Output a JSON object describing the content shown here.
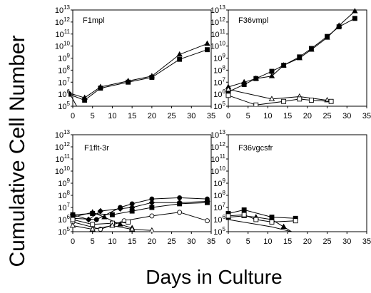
{
  "figure": {
    "ylabel": "Cumulative Cell Number",
    "xlabel": "Days in Culture"
  },
  "chart_data": [
    {
      "type": "line",
      "title": "F1mpl",
      "xlim": [
        0,
        35
      ],
      "ylim_log10": [
        5,
        13
      ],
      "xticks": [
        0,
        5,
        10,
        15,
        20,
        25,
        30,
        35
      ],
      "yticks_log10": [
        5,
        6,
        7,
        8,
        9,
        10,
        11,
        12,
        13
      ],
      "series": [
        {
          "marker": "triangle-filled",
          "points": [
            [
              -1,
              6.1
            ],
            [
              3,
              5.7
            ],
            [
              7,
              6.6
            ],
            [
              14,
              7.1
            ],
            [
              20,
              7.5
            ],
            [
              27,
              9.3
            ],
            [
              34,
              10.2
            ]
          ]
        },
        {
          "marker": "square-filled",
          "points": [
            [
              -1,
              6.0
            ],
            [
              3,
              5.5
            ],
            [
              7,
              6.5
            ],
            [
              14,
              7.0
            ],
            [
              20,
              7.4
            ],
            [
              27,
              8.9
            ],
            [
              34,
              9.7
            ]
          ]
        },
        {
          "marker": "none",
          "points": [
            [
              -1,
              6.2
            ],
            [
              1,
              5.0
            ]
          ]
        }
      ]
    },
    {
      "type": "line",
      "title": "F36vmpl",
      "xlim": [
        0,
        35
      ],
      "ylim_log10": [
        5,
        13
      ],
      "xticks": [
        0,
        5,
        10,
        15,
        20,
        25,
        30,
        35
      ],
      "yticks_log10": [
        5,
        6,
        7,
        8,
        9,
        10,
        11,
        12,
        13
      ],
      "series": [
        {
          "marker": "triangle-filled",
          "points": [
            [
              0,
              6.6
            ],
            [
              4,
              7.0
            ],
            [
              7,
              7.3
            ],
            [
              11,
              7.5
            ],
            [
              14,
              8.4
            ],
            [
              18,
              9.0
            ],
            [
              21,
              9.7
            ],
            [
              25,
              10.7
            ],
            [
              28,
              11.7
            ],
            [
              32,
              12.9
            ]
          ]
        },
        {
          "marker": "square-filled",
          "points": [
            [
              0,
              6.2
            ],
            [
              4,
              6.8
            ],
            [
              7,
              7.3
            ],
            [
              11,
              7.9
            ],
            [
              14,
              8.4
            ],
            [
              18,
              9.1
            ],
            [
              21,
              9.8
            ],
            [
              25,
              10.8
            ],
            [
              28,
              11.6
            ],
            [
              32,
              12.3
            ]
          ]
        },
        {
          "marker": "triangle-open",
          "points": [
            [
              0,
              6.4
            ],
            [
              11,
              5.6
            ],
            [
              18,
              5.8
            ],
            [
              25,
              5.5
            ]
          ]
        },
        {
          "marker": "square-open",
          "points": [
            [
              0,
              5.9
            ],
            [
              7,
              5.1
            ],
            [
              14,
              5.4
            ],
            [
              18,
              5.6
            ],
            [
              21,
              5.5
            ],
            [
              26,
              5.4
            ]
          ]
        }
      ]
    },
    {
      "type": "line",
      "title": "F1flt-3r",
      "xlim": [
        0,
        35
      ],
      "ylim_log10": [
        5,
        13
      ],
      "xticks": [
        0,
        5,
        10,
        15,
        20,
        25,
        30,
        35
      ],
      "yticks_log10": [
        5,
        6,
        7,
        8,
        9,
        10,
        11,
        12,
        13
      ],
      "series": [
        {
          "marker": "circle-filled",
          "points": [
            [
              0,
              6.1
            ],
            [
              6,
              6.0
            ],
            [
              12,
              7.0
            ],
            [
              15,
              7.3
            ],
            [
              20,
              7.7
            ],
            [
              27,
              7.8
            ],
            [
              34,
              7.7
            ]
          ]
        },
        {
          "marker": "diamond-filled",
          "points": [
            [
              0,
              6.4
            ],
            [
              4,
              6.0
            ],
            [
              7,
              6.7
            ],
            [
              12,
              6.9
            ],
            [
              15,
              7.0
            ],
            [
              20,
              7.4
            ],
            [
              27,
              7.4
            ],
            [
              34,
              7.5
            ]
          ]
        },
        {
          "marker": "square-filled",
          "points": [
            [
              0,
              6.4
            ],
            [
              5,
              6.5
            ],
            [
              10,
              6.4
            ],
            [
              15,
              6.7
            ],
            [
              20,
              7.0
            ],
            [
              27,
              7.3
            ],
            [
              34,
              7.4
            ]
          ]
        },
        {
          "marker": "triangle-filled",
          "points": [
            [
              0,
              6.2
            ],
            [
              5,
              6.6
            ],
            [
              8,
              6.2
            ],
            [
              12,
              5.6
            ],
            [
              15,
              5.3
            ]
          ]
        },
        {
          "marker": "circle-open",
          "points": [
            [
              0,
              5.8
            ],
            [
              7,
              5.2
            ],
            [
              13,
              5.9
            ],
            [
              20,
              6.3
            ],
            [
              27,
              6.6
            ],
            [
              34,
              5.9
            ]
          ]
        },
        {
          "marker": "square-open",
          "points": [
            [
              0,
              6.0
            ],
            [
              5,
              5.6
            ],
            [
              10,
              5.7
            ],
            [
              14,
              5.8
            ]
          ]
        },
        {
          "marker": "triangle-open",
          "points": [
            [
              0,
              5.5
            ],
            [
              5,
              5.2
            ],
            [
              10,
              5.5
            ],
            [
              15,
              5.2
            ],
            [
              20,
              5.1
            ]
          ]
        }
      ]
    },
    {
      "type": "line",
      "title": "F36vgcsfr",
      "xlim": [
        0,
        35
      ],
      "ylim_log10": [
        5,
        13
      ],
      "xticks": [
        0,
        5,
        10,
        15,
        20,
        25,
        30,
        35
      ],
      "yticks_log10": [
        5,
        6,
        7,
        8,
        9,
        10,
        11,
        12,
        13
      ],
      "series": [
        {
          "marker": "square-filled",
          "points": [
            [
              0,
              6.5
            ],
            [
              4,
              6.8
            ],
            [
              11,
              6.2
            ],
            [
              17,
              6.1
            ]
          ]
        },
        {
          "marker": "triangle-filled",
          "points": [
            [
              0,
              6.2
            ],
            [
              4,
              6.3
            ],
            [
              7,
              6.2
            ],
            [
              11,
              6.0
            ],
            [
              14,
              5.4
            ],
            [
              18,
              4.6
            ]
          ]
        },
        {
          "marker": "square-open",
          "points": [
            [
              0,
              6.3
            ],
            [
              4,
              6.4
            ],
            [
              7,
              6.0
            ],
            [
              11,
              5.8
            ],
            [
              17,
              5.9
            ]
          ]
        },
        {
          "marker": "none",
          "points": [
            [
              0,
              6.0
            ],
            [
              11,
              5.4
            ],
            [
              21,
              4.6
            ]
          ]
        }
      ]
    }
  ]
}
